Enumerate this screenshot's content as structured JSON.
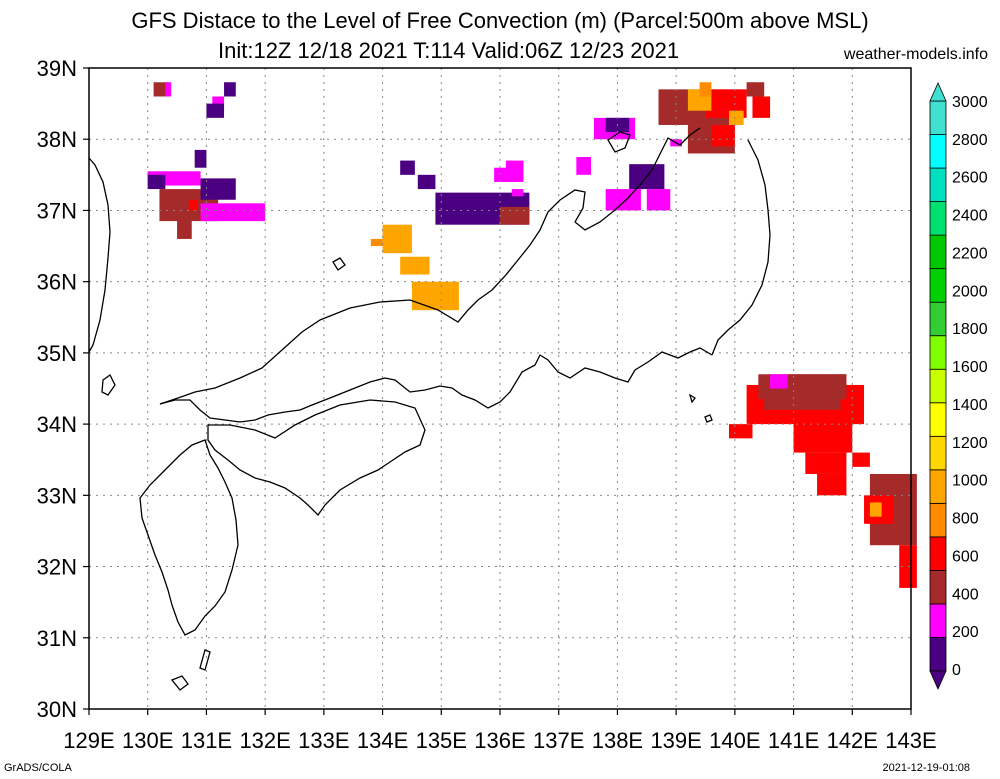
{
  "title": {
    "line1": "GFS Distace to the Level of Free Convection (m) (Parcel:500m above MSL)",
    "line2": "Init:12Z 12/18 2021 T:114 Valid:06Z 12/23 2021"
  },
  "site_label": "weather-models.info",
  "footer": {
    "left": "GrADS/COLA",
    "right": "2021-12-19-01:08"
  },
  "map": {
    "lon_ticks": [
      "129E",
      "130E",
      "131E",
      "132E",
      "133E",
      "134E",
      "135E",
      "136E",
      "137E",
      "138E",
      "139E",
      "140E",
      "141E",
      "142E",
      "143E"
    ],
    "lat_ticks": [
      "39N",
      "38N",
      "37N",
      "36N",
      "35N",
      "34N",
      "33N",
      "32N",
      "31N",
      "30N"
    ],
    "lon_range": [
      129,
      143
    ],
    "lat_range": [
      30,
      39
    ]
  },
  "colorbar": {
    "labels": [
      "0",
      "200",
      "400",
      "600",
      "800",
      "1000",
      "1200",
      "1400",
      "1600",
      "1800",
      "2000",
      "2200",
      "2400",
      "2600",
      "2800",
      "3000"
    ],
    "colors": [
      "#4b0082",
      "#ff00ff",
      "#a52a2a",
      "#ff0000",
      "#ff8c00",
      "#ffa500",
      "#ffd700",
      "#ffff00",
      "#c8ff00",
      "#80ff00",
      "#32cd32",
      "#00d000",
      "#00c800",
      "#00e070",
      "#00e0c0",
      "#00ffff",
      "#40e0d0"
    ],
    "low_arrow_color": "#4b0082",
    "high_arrow_color": "#40e0d0"
  },
  "regions": [
    {
      "name": "sea-of-japan-west",
      "cells": [
        [
          130.1,
          38.6,
          0.25,
          0.2,
          "#a52a2a"
        ],
        [
          130.3,
          38.6,
          0.1,
          0.2,
          "#ff00ff"
        ],
        [
          131.3,
          38.6,
          0.2,
          0.2,
          "#4b0082"
        ],
        [
          131.1,
          38.4,
          0.2,
          0.2,
          "#ff00ff"
        ],
        [
          131.0,
          38.3,
          0.3,
          0.2,
          "#4b0082"
        ]
      ]
    },
    {
      "name": "korea-east-cluster",
      "cells": [
        [
          130.0,
          37.35,
          0.9,
          0.2,
          "#ff00ff"
        ],
        [
          130.0,
          37.3,
          0.3,
          0.2,
          "#4b0082"
        ],
        [
          130.2,
          36.85,
          1.0,
          0.45,
          "#a52a2a"
        ],
        [
          130.9,
          37.15,
          0.6,
          0.3,
          "#4b0082"
        ],
        [
          130.9,
          36.85,
          1.1,
          0.25,
          "#ff00ff"
        ],
        [
          130.5,
          36.6,
          0.25,
          0.3,
          "#a52a2a"
        ],
        [
          130.7,
          37.0,
          0.15,
          0.15,
          "#ff0000"
        ],
        [
          130.8,
          37.6,
          0.2,
          0.25,
          "#4b0082"
        ]
      ]
    },
    {
      "name": "noto-cluster",
      "cells": [
        [
          134.3,
          37.5,
          0.25,
          0.2,
          "#4b0082"
        ],
        [
          134.6,
          37.3,
          0.3,
          0.2,
          "#4b0082"
        ],
        [
          134.9,
          36.8,
          1.6,
          0.45,
          "#4b0082"
        ],
        [
          135.9,
          37.4,
          0.4,
          0.2,
          "#ff00ff"
        ],
        [
          136.1,
          37.4,
          0.3,
          0.3,
          "#ff00ff"
        ],
        [
          136.0,
          36.8,
          0.5,
          0.25,
          "#a52a2a"
        ],
        [
          136.2,
          37.2,
          0.2,
          0.1,
          "#ff00ff"
        ],
        [
          137.3,
          37.5,
          0.25,
          0.25,
          "#ff00ff"
        ]
      ]
    },
    {
      "name": "sado-cluster",
      "cells": [
        [
          137.6,
          38.0,
          0.7,
          0.3,
          "#ff00ff"
        ],
        [
          137.8,
          38.1,
          0.4,
          0.2,
          "#4b0082"
        ],
        [
          138.2,
          37.3,
          0.6,
          0.35,
          "#4b0082"
        ],
        [
          137.8,
          37.0,
          0.6,
          0.3,
          "#ff00ff"
        ],
        [
          138.5,
          37.0,
          0.4,
          0.3,
          "#ff00ff"
        ]
      ]
    },
    {
      "name": "niigata-cluster",
      "cells": [
        [
          138.7,
          38.2,
          1.4,
          0.5,
          "#a52a2a"
        ],
        [
          139.2,
          37.8,
          0.8,
          0.4,
          "#a52a2a"
        ],
        [
          139.5,
          38.3,
          0.7,
          0.4,
          "#ff0000"
        ],
        [
          139.6,
          37.9,
          0.4,
          0.3,
          "#ff0000"
        ],
        [
          139.2,
          38.4,
          0.4,
          0.3,
          "#ffa500"
        ],
        [
          139.4,
          38.6,
          0.2,
          0.2,
          "#ff8c00"
        ],
        [
          140.3,
          38.3,
          0.3,
          0.3,
          "#ff0000"
        ],
        [
          140.2,
          38.6,
          0.3,
          0.2,
          "#a52a2a"
        ],
        [
          139.9,
          38.2,
          0.25,
          0.2,
          "#ffa500"
        ],
        [
          138.9,
          37.9,
          0.2,
          0.1,
          "#ff00ff"
        ]
      ]
    },
    {
      "name": "san-in-cluster",
      "cells": [
        [
          134.0,
          36.4,
          0.5,
          0.4,
          "#ffa500"
        ],
        [
          134.3,
          36.1,
          0.5,
          0.25,
          "#ffa500"
        ],
        [
          134.5,
          35.6,
          0.8,
          0.4,
          "#ffa500"
        ],
        [
          133.8,
          36.5,
          0.2,
          0.1,
          "#ff8c00"
        ]
      ]
    },
    {
      "name": "kanto-east-cluster",
      "cells": [
        [
          140.2,
          34.0,
          2.0,
          0.55,
          "#ff0000"
        ],
        [
          140.4,
          34.35,
          1.5,
          0.35,
          "#a52a2a"
        ],
        [
          140.9,
          34.5,
          1.0,
          0.2,
          "#a52a2a"
        ],
        [
          140.6,
          34.5,
          0.3,
          0.2,
          "#ff00ff"
        ],
        [
          140.5,
          34.2,
          1.3,
          0.3,
          "#a52a2a"
        ],
        [
          141.0,
          33.6,
          1.0,
          0.6,
          "#ff0000"
        ],
        [
          141.2,
          33.3,
          0.7,
          0.3,
          "#ff0000"
        ],
        [
          141.4,
          33.0,
          0.5,
          0.3,
          "#ff0000"
        ],
        [
          139.9,
          33.8,
          0.4,
          0.2,
          "#ff0000"
        ],
        [
          142.0,
          33.4,
          0.3,
          0.2,
          "#ff0000"
        ]
      ]
    },
    {
      "name": "southeast-cluster",
      "cells": [
        [
          142.3,
          32.3,
          0.8,
          1.0,
          "#a52a2a"
        ],
        [
          142.2,
          32.6,
          0.5,
          0.4,
          "#ff0000"
        ],
        [
          142.3,
          32.7,
          0.2,
          0.2,
          "#ffa500"
        ],
        [
          142.8,
          31.7,
          0.3,
          0.6,
          "#ff0000"
        ],
        [
          142.6,
          33.0,
          0.4,
          0.2,
          "#a52a2a"
        ]
      ]
    }
  ]
}
